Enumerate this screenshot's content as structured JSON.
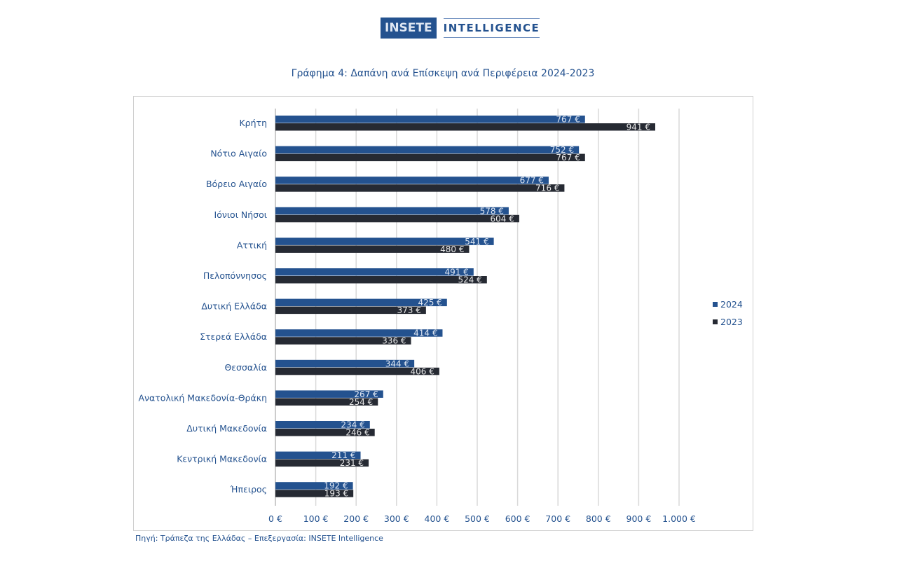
{
  "logo": {
    "left": "INSETE",
    "right": "INTELLIGENCE"
  },
  "title": "Γράφημα 4: Δαπάνη ανά Επίσκεψη ανά Περιφέρεια 2024-2023",
  "source": "Πηγή: Τράπεζα της Ελλάδας – Επεξεργασία: INSETE Intelligence",
  "chart_data": {
    "type": "bar",
    "orientation": "horizontal",
    "categories": [
      "Κρήτη",
      "Νότιο Αιγαίο",
      "Βόρειο Αιγαίο",
      "Ιόνιοι Νήσοι",
      "Αττική",
      "Πελοπόννησος",
      "Δυτική Ελλάδα",
      "Στερεά Ελλάδα",
      "Θεσσαλία",
      "Ανατολική Μακεδονία-Θράκη",
      "Δυτική Μακεδονία",
      "Κεντρική Μακεδονία",
      "Ήπειρος"
    ],
    "series": [
      {
        "name": "2024",
        "color": "#24528f",
        "values": [
          767,
          752,
          677,
          578,
          541,
          491,
          425,
          414,
          344,
          267,
          234,
          211,
          192
        ]
      },
      {
        "name": "2023",
        "color": "#262a33",
        "values": [
          941,
          767,
          716,
          604,
          480,
          524,
          373,
          336,
          406,
          254,
          246,
          231,
          193
        ]
      }
    ],
    "xlim": [
      0,
      1000
    ],
    "xticks": [
      "0 €",
      "100 €",
      "200 €",
      "300 €",
      "400 €",
      "500 €",
      "600 €",
      "700 €",
      "800 €",
      "900 €",
      "1.000 €"
    ],
    "value_suffix": " €",
    "grid": true,
    "legend": "right"
  }
}
